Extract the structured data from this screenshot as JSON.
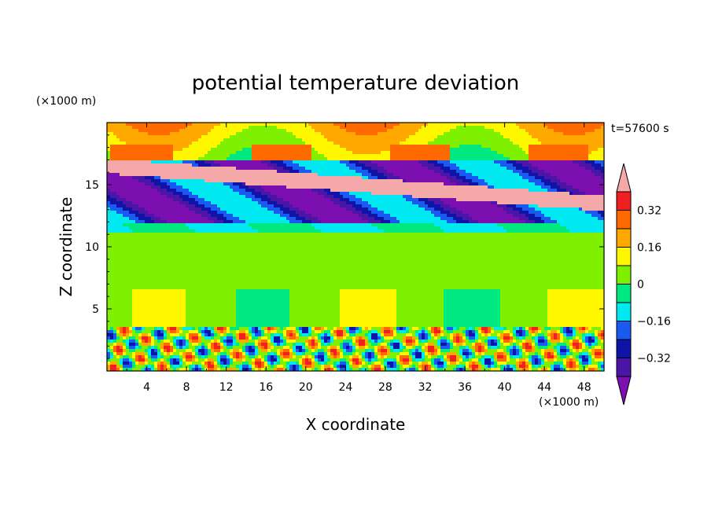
{
  "chart_data": {
    "type": "heatmap",
    "title": "potential temperature deviation",
    "xlabel": "X coordinate",
    "ylabel": "Z coordinate",
    "x_unit_label": "(×1000 m)",
    "y_unit_label": "(×1000 m)",
    "time_label": "t=57600 s",
    "xlim": [
      0,
      50
    ],
    "ylim": [
      0,
      20
    ],
    "x_ticks": [
      4,
      8,
      12,
      16,
      20,
      24,
      28,
      32,
      36,
      40,
      44,
      48
    ],
    "y_ticks": [
      5,
      10,
      15
    ],
    "x_tick_labels": [
      "4",
      "8",
      "12",
      "16",
      "20",
      "24",
      "28",
      "32",
      "36",
      "40",
      "44",
      "48"
    ],
    "y_tick_labels": [
      "5",
      "10",
      "15"
    ],
    "colorbar": {
      "levels": [
        -0.4,
        -0.32,
        -0.24,
        -0.16,
        -0.08,
        0,
        0.08,
        0.16,
        0.24,
        0.32,
        0.4
      ],
      "labeled_levels": [
        0.32,
        0.16,
        0,
        -0.16,
        -0.32
      ],
      "labels": [
        "0.32",
        "0.16",
        "0",
        "−0.16",
        "−0.32"
      ],
      "colors": [
        "#7b0fb0",
        "#4b16a8",
        "#0f14a6",
        "#1a5af0",
        "#00e8f0",
        "#00e880",
        "#7ef000",
        "#fff700",
        "#ffa800",
        "#ff6a00",
        "#f02020",
        "#f5a8a8"
      ],
      "extend": "both"
    }
  }
}
